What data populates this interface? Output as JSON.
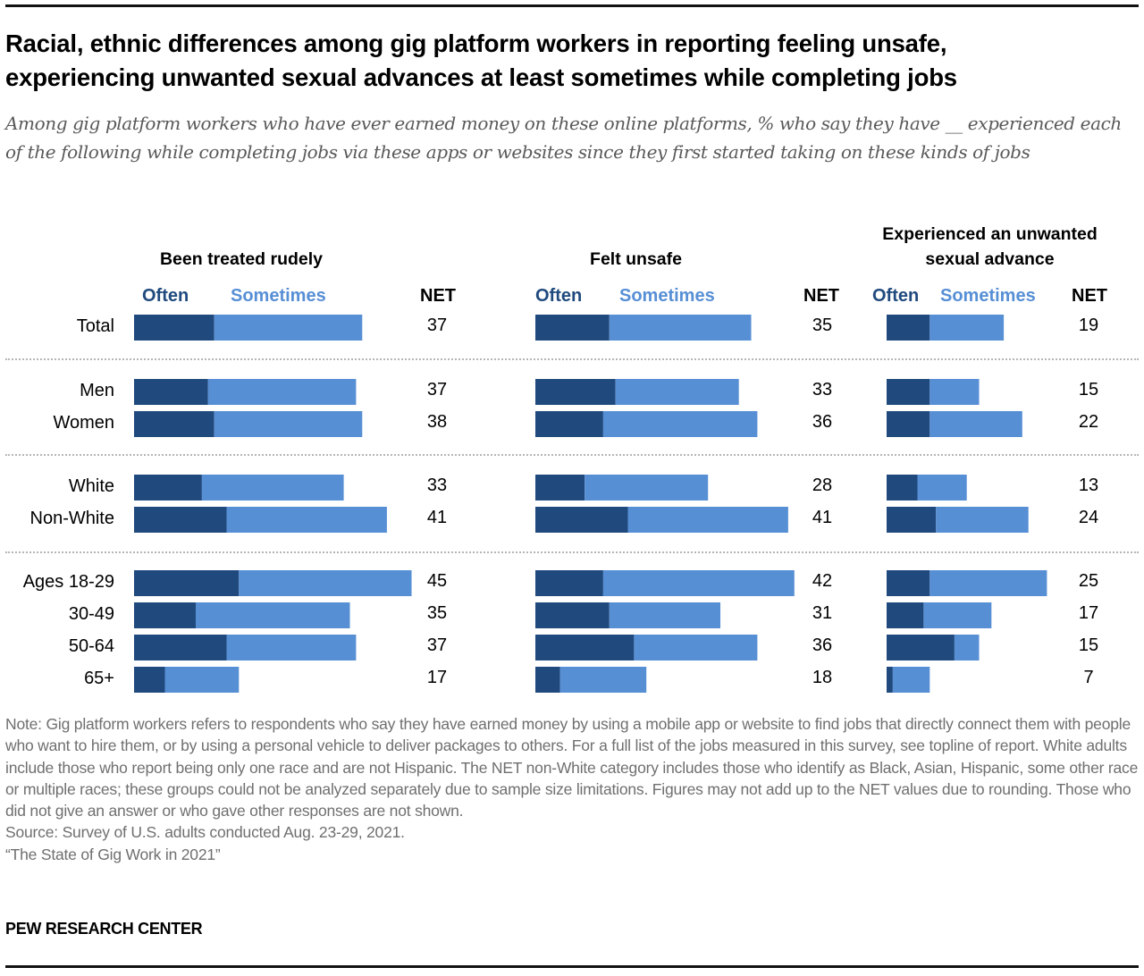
{
  "header": {
    "title_line1": "Racial, ethnic differences among gig platform workers in reporting feeling unsafe,",
    "title_line2": "experiencing unwanted sexual advances at least sometimes while completing jobs",
    "subtitle": "Among gig platform workers who have ever earned money on these online platforms, % who say they have __ experienced each of the following while completing jobs via these apps or websites since they first started taking on these kinds of jobs"
  },
  "legend": {
    "often": "Often",
    "sometimes": "Sometimes",
    "net": "NET"
  },
  "colors": {
    "often": "#204a7e",
    "sometimes": "#578fd5"
  },
  "row_labels": [
    "Total",
    "Men",
    "Women",
    "White",
    "Non-White",
    "Ages 18-29",
    "30-49",
    "50-64",
    "65+"
  ],
  "chart_data": {
    "type": "bar",
    "orientation": "horizontal",
    "stacked": true,
    "title": "Racial, ethnic differences among gig platform workers in reporting feeling unsafe, experiencing unwanted sexual advances at least sometimes while completing jobs",
    "categories": [
      "Total",
      "Men",
      "Women",
      "White",
      "Non-White",
      "Ages 18-29",
      "30-49",
      "50-64",
      "65+"
    ],
    "groups": [
      [
        "Total"
      ],
      [
        "Men",
        "Women"
      ],
      [
        "White",
        "Non-White"
      ],
      [
        "Ages 18-29",
        "30-49",
        "50-64",
        "65+"
      ]
    ],
    "legend": [
      "Often",
      "Sometimes"
    ],
    "panels": [
      {
        "title": "Been treated rudely",
        "series": [
          {
            "name": "Often",
            "values": [
              13,
              12,
              13,
              11,
              15,
              17,
              10,
              15,
              5
            ]
          },
          {
            "name": "Sometimes",
            "values": [
              24,
              24,
              24,
              23,
              26,
              28,
              25,
              21,
              12
            ]
          }
        ],
        "net": [
          37,
          37,
          38,
          33,
          41,
          45,
          35,
          37,
          17
        ]
      },
      {
        "title": "Felt unsafe",
        "series": [
          {
            "name": "Often",
            "values": [
              12,
              13,
              11,
              8,
              15,
              11,
              12,
              16,
              4
            ]
          },
          {
            "name": "Sometimes",
            "values": [
              23,
              20,
              25,
              20,
              26,
              31,
              18,
              20,
              14
            ]
          }
        ],
        "net": [
          35,
          33,
          36,
          28,
          41,
          42,
          31,
          36,
          18
        ]
      },
      {
        "title": "Experienced an unwanted sexual advance",
        "series": [
          {
            "name": "Often",
            "values": [
              7,
              7,
              7,
              5,
              8,
              7,
              6,
              11,
              1
            ]
          },
          {
            "name": "Sometimes",
            "values": [
              12,
              8,
              15,
              8,
              15,
              19,
              11,
              4,
              6
            ]
          }
        ],
        "net": [
          19,
          15,
          22,
          13,
          24,
          25,
          17,
          15,
          7
        ]
      }
    ],
    "xlabel": "",
    "ylabel": "",
    "xlim": [
      0,
      100
    ],
    "grid": false
  },
  "panel_titles": {
    "rudely": "Been treated rudely",
    "unsafe": "Felt unsafe",
    "sexual_line1": "Experienced an unwanted",
    "sexual_line2": "sexual advance"
  },
  "footer": {
    "note": "Note: Gig platform workers refers to respondents who say they have earned money by using a mobile app or website to find jobs that directly connect them with people who want to hire them, or by using a personal vehicle to deliver packages to others. For a full list of the jobs measured in this survey, see topline of report. White adults include those who report being only one race and are not Hispanic. The NET non-White category includes those who identify as Black, Asian, Hispanic, some other race or multiple races; these groups could not be analyzed separately due to sample size limitations. Figures may not add up to the NET values due to rounding. Those who did not give an answer or who gave other responses are not shown.",
    "source": "Source: Survey of U.S. adults conducted Aug. 23-29, 2021.",
    "report": "“The State of Gig Work in 2021”",
    "brand": "PEW RESEARCH CENTER"
  }
}
